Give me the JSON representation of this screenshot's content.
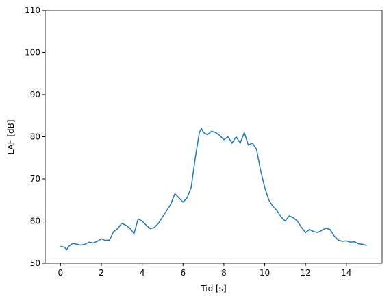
{
  "chart_data": {
    "type": "line",
    "xlabel": "Tid [s]",
    "ylabel": "LAF [dB]",
    "x": [
      0,
      0.2,
      0.3,
      0.4,
      0.6,
      0.8,
      1.0,
      1.2,
      1.4,
      1.6,
      1.8,
      2.0,
      2.2,
      2.4,
      2.6,
      2.8,
      3.0,
      3.2,
      3.4,
      3.6,
      3.8,
      4.0,
      4.2,
      4.4,
      4.6,
      4.8,
      5.0,
      5.2,
      5.4,
      5.6,
      5.8,
      6.0,
      6.2,
      6.4,
      6.6,
      6.8,
      6.9,
      7.0,
      7.2,
      7.4,
      7.6,
      7.8,
      8.0,
      8.2,
      8.4,
      8.6,
      8.8,
      9.0,
      9.2,
      9.4,
      9.6,
      9.8,
      10.0,
      10.2,
      10.4,
      10.6,
      10.8,
      11.0,
      11.2,
      11.4,
      11.6,
      11.8,
      12.0,
      12.2,
      12.4,
      12.6,
      12.8,
      13.0,
      13.2,
      13.4,
      13.6,
      13.8,
      14.0,
      14.2,
      14.4,
      14.6,
      14.8,
      15.0
    ],
    "values": [
      54,
      53.8,
      53.2,
      54,
      54.7,
      54.5,
      54.3,
      54.5,
      55,
      54.8,
      55.2,
      55.8,
      55.4,
      55.5,
      57.5,
      58.2,
      59.5,
      59,
      58.3,
      57,
      60.5,
      60,
      59,
      58.2,
      58.5,
      59.5,
      61,
      62.5,
      64,
      66.5,
      65.5,
      64.5,
      65.5,
      68,
      75,
      81,
      82,
      81,
      80.5,
      81.3,
      81,
      80.3,
      79.3,
      80,
      78.5,
      80,
      78.5,
      81,
      78,
      78.5,
      77,
      72,
      68,
      65,
      63.5,
      62.5,
      61,
      60,
      61.2,
      60.8,
      60,
      58.5,
      57.3,
      58,
      57.5,
      57.3,
      57.8,
      58.3,
      58,
      56.5,
      55.5,
      55.2,
      55.3,
      55,
      55.1,
      54.6,
      54.5,
      54.2
    ],
    "color": "#1f77b4",
    "xlim": [
      -0.75,
      15.75
    ],
    "xticks": [
      0,
      2,
      4,
      6,
      8,
      10,
      12,
      14
    ],
    "ylim": [
      50,
      110
    ],
    "yticks": [
      50,
      60,
      70,
      80,
      90,
      100,
      110
    ]
  }
}
